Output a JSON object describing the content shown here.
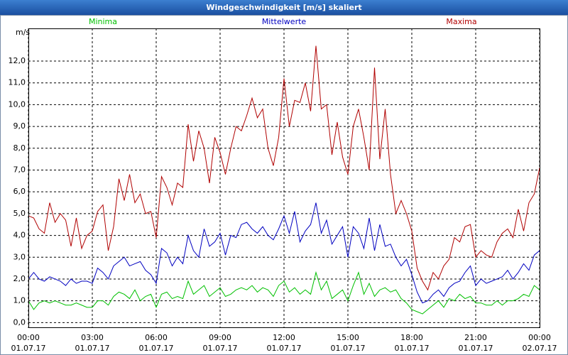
{
  "chart_data": {
    "type": "line",
    "title": "Windgeschwindigkeit [m/s] skaliert",
    "ylabel": "m/s",
    "xlim": [
      0,
      24
    ],
    "xticks": [
      {
        "value": 0,
        "label": "00:00"
      },
      {
        "value": 3,
        "label": "03:00"
      },
      {
        "value": 6,
        "label": "06:00"
      },
      {
        "value": 9,
        "label": "09:00"
      },
      {
        "value": 12,
        "label": "12:00"
      },
      {
        "value": 15,
        "label": "15:00"
      },
      {
        "value": 18,
        "label": "18:00"
      },
      {
        "value": 21,
        "label": "21:00"
      },
      {
        "value": 24,
        "label": "00:00"
      }
    ],
    "xtick_dates": [
      "01.07.17",
      "01.07.17",
      "01.07.17",
      "01.07.17",
      "01.07.17",
      "01.07.17",
      "01.07.17",
      "01.07.17",
      "02.07.17"
    ],
    "ylim": [
      -0.25,
      13.5
    ],
    "yticks": [
      {
        "value": 0,
        "label": "0,0"
      },
      {
        "value": 1,
        "label": "1,0"
      },
      {
        "value": 2,
        "label": "2,0"
      },
      {
        "value": 3,
        "label": "3,0"
      },
      {
        "value": 4,
        "label": "4,0"
      },
      {
        "value": 5,
        "label": "5,0"
      },
      {
        "value": 6,
        "label": "6,0"
      },
      {
        "value": 7,
        "label": "7,0"
      },
      {
        "value": 8,
        "label": "8,0"
      },
      {
        "value": 9,
        "label": "9,0"
      },
      {
        "value": 10,
        "label": "10,0"
      },
      {
        "value": 11,
        "label": "11,0"
      },
      {
        "value": 12,
        "label": "12,0"
      }
    ],
    "grid": true,
    "x": [
      0,
      0.25,
      0.5,
      0.75,
      1,
      1.25,
      1.5,
      1.75,
      2,
      2.25,
      2.5,
      2.75,
      3,
      3.25,
      3.5,
      3.75,
      4,
      4.25,
      4.5,
      4.75,
      5,
      5.25,
      5.5,
      5.75,
      6,
      6.25,
      6.5,
      6.75,
      7,
      7.25,
      7.5,
      7.75,
      8,
      8.25,
      8.5,
      8.75,
      9,
      9.25,
      9.5,
      9.75,
      10,
      10.25,
      10.5,
      10.75,
      11,
      11.25,
      11.5,
      11.75,
      12,
      12.25,
      12.5,
      12.75,
      13,
      13.25,
      13.5,
      13.75,
      14,
      14.25,
      14.5,
      14.75,
      15,
      15.25,
      15.5,
      15.75,
      16,
      16.25,
      16.5,
      16.75,
      17,
      17.25,
      17.5,
      17.75,
      18,
      18.25,
      18.5,
      18.75,
      19,
      19.25,
      19.5,
      19.75,
      20,
      20.25,
      20.5,
      20.75,
      21,
      21.25,
      21.5,
      21.75,
      22,
      22.25,
      22.5,
      22.75,
      23,
      23.25,
      23.5,
      23.75,
      24
    ],
    "series": [
      {
        "name": "Minima",
        "color": "#00c000",
        "values": [
          1.0,
          0.6,
          0.9,
          1.0,
          0.9,
          1.0,
          0.9,
          0.8,
          0.8,
          0.9,
          0.8,
          0.7,
          0.7,
          1.0,
          1.0,
          0.8,
          1.2,
          1.4,
          1.3,
          1.1,
          1.5,
          1.0,
          1.2,
          1.3,
          0.7,
          1.3,
          1.4,
          1.1,
          1.2,
          1.1,
          1.9,
          1.3,
          1.5,
          1.7,
          1.2,
          1.4,
          1.6,
          1.2,
          1.3,
          1.5,
          1.6,
          1.5,
          1.7,
          1.4,
          1.6,
          1.5,
          1.2,
          1.7,
          1.9,
          1.4,
          1.6,
          1.3,
          1.5,
          1.3,
          2.3,
          1.5,
          1.9,
          1.1,
          1.3,
          1.5,
          1.0,
          1.7,
          2.3,
          1.3,
          1.8,
          1.2,
          1.5,
          1.6,
          1.4,
          1.5,
          1.1,
          0.9,
          0.6,
          0.5,
          0.4,
          0.6,
          0.8,
          1.0,
          0.7,
          1.1,
          1.0,
          1.3,
          1.1,
          1.2,
          0.9,
          0.9,
          0.8,
          0.8,
          1.0,
          0.8,
          1.0,
          1.0,
          1.1,
          1.3,
          1.2,
          1.7,
          1.5
        ]
      },
      {
        "name": "Mittelwerte",
        "color": "#0000c0",
        "values": [
          2.0,
          2.3,
          2.0,
          1.9,
          2.1,
          2.0,
          1.9,
          1.7,
          2.0,
          1.8,
          1.9,
          1.9,
          1.8,
          2.5,
          2.3,
          2.0,
          2.6,
          2.8,
          3.0,
          2.6,
          2.7,
          2.8,
          2.4,
          2.2,
          1.8,
          3.4,
          3.2,
          2.6,
          3.0,
          2.7,
          4.0,
          3.3,
          3.0,
          4.3,
          3.5,
          3.7,
          4.1,
          3.1,
          4.0,
          3.9,
          4.5,
          4.6,
          4.3,
          4.1,
          4.4,
          4.0,
          3.8,
          4.3,
          4.9,
          4.1,
          5.1,
          3.7,
          4.2,
          4.5,
          5.5,
          4.1,
          4.7,
          3.6,
          4.0,
          4.4,
          3.0,
          4.4,
          4.1,
          3.4,
          4.8,
          3.3,
          4.5,
          3.5,
          3.6,
          3.0,
          2.6,
          2.9,
          2.2,
          1.4,
          0.9,
          1.0,
          1.3,
          1.5,
          1.2,
          1.6,
          1.8,
          1.9,
          2.3,
          2.6,
          1.7,
          2.0,
          1.8,
          1.9,
          2.0,
          2.1,
          2.4,
          2.0,
          2.3,
          2.7,
          2.4,
          3.1,
          3.3
        ]
      },
      {
        "name": "Maxima",
        "color": "#b00000",
        "values": [
          4.9,
          4.8,
          4.3,
          4.1,
          5.5,
          4.6,
          5.0,
          4.7,
          3.5,
          4.8,
          3.4,
          4.0,
          4.2,
          5.1,
          5.4,
          3.3,
          4.4,
          6.6,
          5.6,
          6.8,
          5.5,
          5.9,
          5.0,
          5.1,
          3.9,
          6.7,
          6.2,
          5.4,
          6.4,
          6.2,
          9.1,
          7.4,
          8.8,
          8.0,
          6.4,
          8.5,
          7.8,
          6.8,
          8.0,
          9.0,
          8.8,
          9.5,
          10.3,
          9.4,
          9.8,
          8.0,
          7.2,
          8.5,
          11.2,
          9.0,
          10.2,
          10.1,
          11.0,
          9.7,
          12.7,
          9.8,
          10.0,
          7.7,
          9.2,
          7.6,
          6.8,
          9.0,
          9.8,
          8.5,
          7.0,
          11.7,
          7.5,
          9.8,
          6.8,
          5.0,
          5.6,
          5.0,
          4.2,
          2.5,
          1.9,
          1.5,
          2.3,
          2.0,
          2.6,
          2.9,
          3.9,
          3.7,
          4.4,
          4.5,
          3.0,
          3.3,
          3.1,
          3.0,
          3.7,
          4.1,
          4.3,
          3.9,
          5.2,
          4.2,
          5.5,
          5.9,
          7.1
        ]
      }
    ]
  }
}
